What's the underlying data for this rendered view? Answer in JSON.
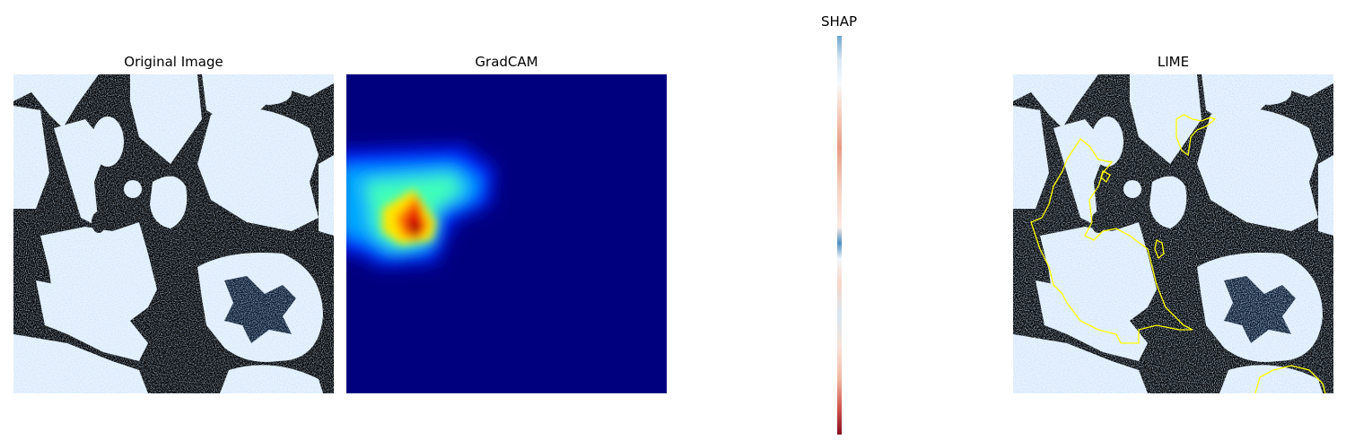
{
  "panels": {
    "original": {
      "title": "Original Image"
    },
    "gradcam": {
      "title": "GradCAM"
    },
    "shap": {
      "title": "SHAP"
    },
    "lime": {
      "title": "LIME"
    }
  },
  "colors": {
    "background": "#ffffff",
    "ct_tissue": "#eef6ff",
    "ct_texture": "#9bbde6",
    "ct_dark": "#000000",
    "jet_low": "#00007f",
    "jet_high": "#800000",
    "lime_boundary": "#ffff00",
    "shap_positive": "#b2182b",
    "shap_negative": "#2166ac"
  }
}
